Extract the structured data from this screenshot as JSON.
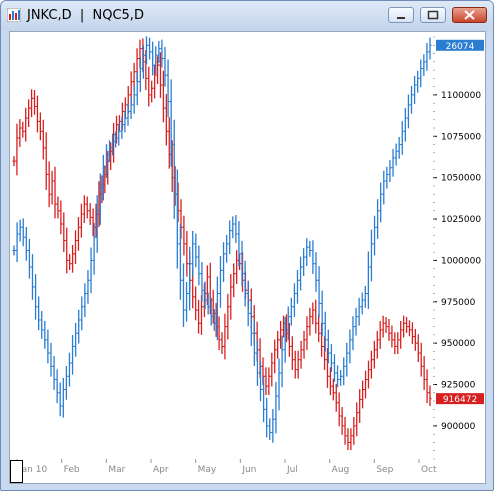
{
  "window": {
    "title": "JNKC,D  |  NQC5,D"
  },
  "chart_data": {
    "type": "bar",
    "subtype": "ohlc-bars-overlay",
    "x_labels": [
      "Jan 10",
      "Feb",
      "Mar",
      "Apr",
      "May",
      "Jun",
      "Jul",
      "Aug",
      "Sep",
      "Oct"
    ],
    "y_ticks": [
      900000,
      925000,
      950000,
      975000,
      1000000,
      1025000,
      1050000,
      1075000,
      1100000
    ],
    "y_tick_labels": [
      "900000",
      "925000",
      "950000",
      "975000",
      "1000000",
      "1025000",
      "1050000",
      "1075000",
      "1100000"
    ],
    "ylim": [
      880000,
      1135000
    ],
    "grid": false,
    "series": [
      {
        "name": "JNKC,D",
        "color": "#d62020",
        "last_value_label": "916472",
        "values": [
          1060000,
          1074000,
          1080000,
          1078000,
          1086000,
          1092000,
          1098000,
          1093000,
          1084000,
          1078000,
          1068000,
          1052000,
          1040000,
          1048000,
          1034000,
          1030000,
          1022000,
          1012000,
          1000000,
          998000,
          1004000,
          1012000,
          1020000,
          1028000,
          1034000,
          1030000,
          1026000,
          1020000,
          1028000,
          1040000,
          1046000,
          1052000,
          1060000,
          1066000,
          1076000,
          1082000,
          1084000,
          1090000,
          1094000,
          1100000,
          1108000,
          1114000,
          1122000,
          1128000,
          1120000,
          1110000,
          1100000,
          1104000,
          1112000,
          1118000,
          1106000,
          1092000,
          1078000,
          1064000,
          1050000,
          1040000,
          1030000,
          1020000,
          1010000,
          998000,
          988000,
          978000,
          970000,
          962000,
          972000,
          980000,
          990000,
          976000,
          968000,
          960000,
          952000,
          948000,
          960000,
          972000,
          984000,
          992000,
          1000000,
          998000,
          988000,
          982000,
          976000,
          966000,
          956000,
          946000,
          936000,
          930000,
          924000,
          930000,
          938000,
          946000,
          952000,
          958000,
          962000,
          956000,
          948000,
          940000,
          934000,
          940000,
          946000,
          952000,
          960000,
          966000,
          970000,
          962000,
          956000,
          948000,
          940000,
          930000,
          924000,
          920000,
          914000,
          906000,
          900000,
          894000,
          890000,
          894000,
          900000,
          908000,
          916000,
          922000,
          928000,
          934000,
          940000,
          946000,
          952000,
          958000,
          962000,
          960000,
          956000,
          952000,
          948000,
          952000,
          958000,
          962000,
          960000,
          958000,
          954000,
          950000,
          944000,
          936000,
          928000,
          920000,
          916472
        ]
      },
      {
        "name": "NQC5,D",
        "color": "#2a7dd1",
        "last_value_label": "26074",
        "values": [
          1006000,
          1016000,
          1020000,
          1014000,
          1006000,
          996000,
          984000,
          972000,
          964000,
          958000,
          952000,
          944000,
          936000,
          928000,
          920000,
          912000,
          922000,
          930000,
          938000,
          948000,
          956000,
          964000,
          972000,
          980000,
          988000,
          1000000,
          1014000,
          1030000,
          1044000,
          1056000,
          1064000,
          1068000,
          1072000,
          1074000,
          1078000,
          1082000,
          1086000,
          1090000,
          1094000,
          1100000,
          1108000,
          1116000,
          1124000,
          1130000,
          1126000,
          1118000,
          1124000,
          1128000,
          1122000,
          1112000,
          1096000,
          1070000,
          1040000,
          1010000,
          988000,
          970000,
          980000,
          998000,
          1010000,
          1002000,
          992000,
          982000,
          976000,
          972000,
          966000,
          962000,
          980000,
          994000,
          1004000,
          1010000,
          1018000,
          1022000,
          1016000,
          1004000,
          992000,
          980000,
          968000,
          956000,
          944000,
          932000,
          922000,
          910000,
          900000,
          896000,
          904000,
          918000,
          932000,
          946000,
          958000,
          966000,
          972000,
          980000,
          988000,
          996000,
          1002000,
          1008000,
          1006000,
          998000,
          988000,
          974000,
          962000,
          952000,
          944000,
          938000,
          932000,
          928000,
          930000,
          936000,
          944000,
          952000,
          960000,
          966000,
          972000,
          976000,
          980000,
          996000,
          1010000,
          1020000,
          1030000,
          1040000,
          1048000,
          1052000,
          1056000,
          1062000,
          1066000,
          1070000,
          1078000,
          1086000,
          1094000,
          1100000,
          1106000,
          1110000,
          1116000,
          1120000,
          1126000,
          1130000
        ]
      }
    ]
  }
}
